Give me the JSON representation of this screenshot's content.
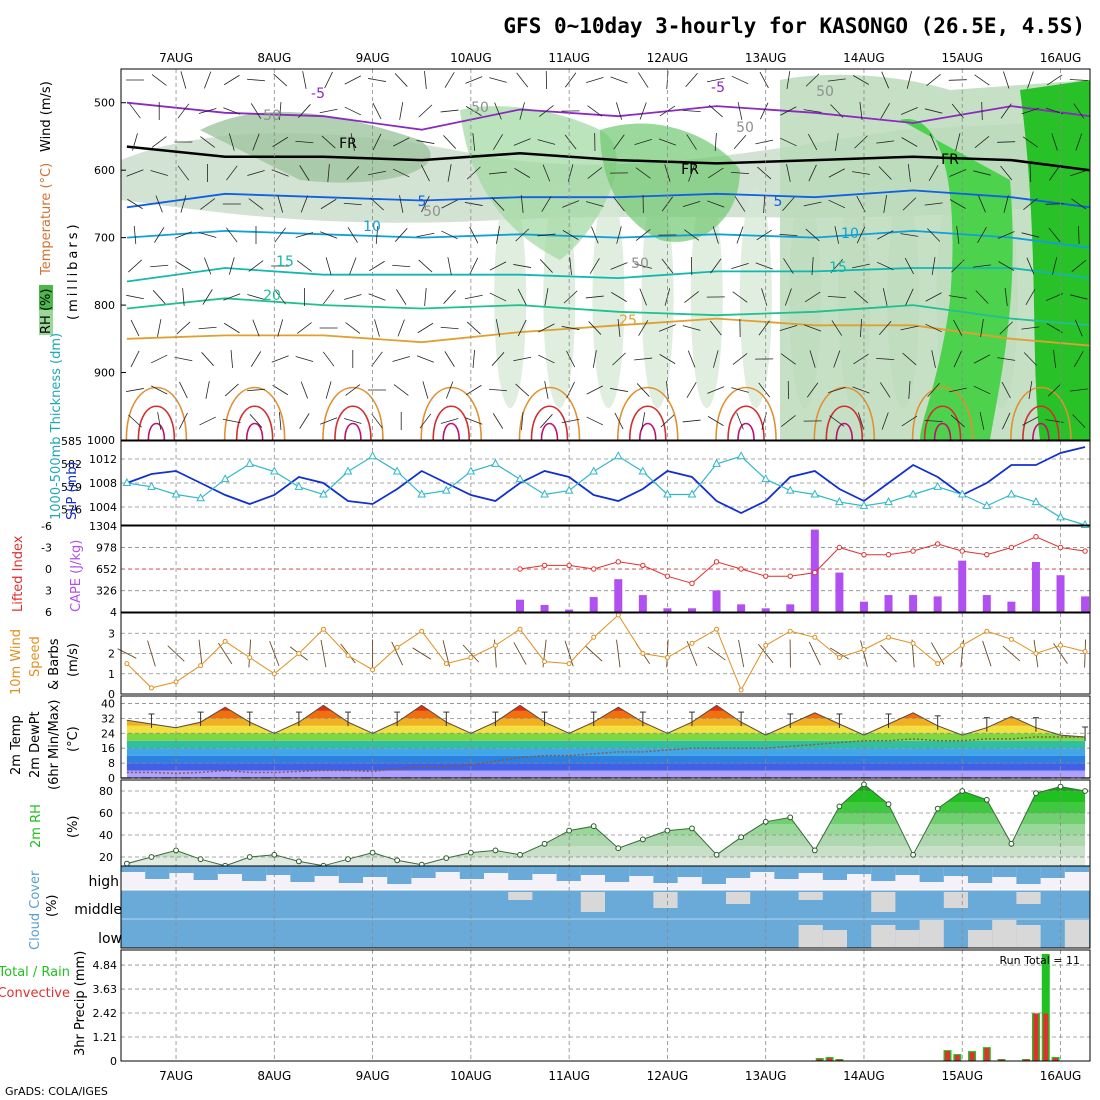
{
  "title": "GFS 0~10day 3-hourly for KASONGO (26.5E, 4.5S)",
  "footer": "GrADS: COLA/IGES",
  "dates": [
    "7AUG",
    "8AUG",
    "9AUG",
    "10AUG",
    "11AUG",
    "12AUG",
    "13AUG",
    "14AUG",
    "15AUG",
    "16AUG"
  ],
  "colors": {
    "red": "#e03030",
    "green": "#20c020",
    "blue": "#1030d0",
    "cyan": "#30b8c8",
    "purple": "#b050f0",
    "orange": "#e09020",
    "cloud": "#6aaad8",
    "gray": "#d8d8d8"
  },
  "chart_data": [
    {
      "type": "heatmap",
      "panel": "upper-air",
      "ylabel_parts": [
        "RH (%)",
        "Temperature (°C)",
        "Wind (m/s)"
      ],
      "y_unit_label": "(millibars)",
      "ylim": [
        1000,
        450
      ],
      "yticks": [
        500,
        600,
        700,
        800,
        900,
        1000
      ],
      "contour_labels": [
        "-5",
        "-5",
        "FR",
        "FR",
        "FR",
        "5",
        "5",
        "10",
        "10",
        "15",
        "15",
        "20",
        "25",
        "50",
        "50",
        "50",
        "50",
        "50",
        "50"
      ],
      "isotherms": [
        {
          "name": "-5",
          "x": [
            6.5,
            7.5,
            8.5,
            9.5,
            10.5,
            11.5,
            12.5,
            13.5,
            14.5,
            15.5,
            16.3
          ],
          "y": [
            500,
            515,
            520,
            540,
            510,
            520,
            505,
            515,
            530,
            505,
            520
          ]
        },
        {
          "name": "FR",
          "x": [
            6.5,
            7.5,
            8.5,
            9.5,
            10.5,
            11.5,
            12.5,
            13.5,
            14.5,
            15.5,
            16.3
          ],
          "y": [
            565,
            580,
            580,
            585,
            575,
            585,
            590,
            585,
            580,
            585,
            600
          ]
        },
        {
          "name": "5",
          "x": [
            6.5,
            7.5,
            8.5,
            9.5,
            10.5,
            11.5,
            12.5,
            13.5,
            14.5,
            15.5,
            16.3
          ],
          "y": [
            655,
            635,
            640,
            645,
            640,
            640,
            635,
            640,
            630,
            640,
            655
          ]
        },
        {
          "name": "10",
          "x": [
            6.5,
            7.5,
            8.5,
            9.5,
            10.5,
            11.5,
            12.5,
            13.5,
            14.5,
            15.5,
            16.3
          ],
          "y": [
            700,
            690,
            695,
            700,
            695,
            700,
            695,
            700,
            690,
            700,
            715
          ]
        },
        {
          "name": "15",
          "x": [
            6.5,
            7.5,
            8.5,
            9.5,
            10.5,
            11.5,
            12.5,
            13.5,
            14.5,
            15.5,
            16.3
          ],
          "y": [
            765,
            745,
            755,
            755,
            755,
            760,
            750,
            750,
            745,
            745,
            760
          ]
        },
        {
          "name": "20",
          "x": [
            6.5,
            7.5,
            8.5,
            9.5,
            10.5,
            11.5,
            12.5,
            13.5,
            14.5,
            15.5,
            16.3
          ],
          "y": [
            805,
            790,
            800,
            805,
            800,
            810,
            815,
            810,
            800,
            820,
            830
          ]
        },
        {
          "name": "25",
          "x": [
            6.5,
            7.5,
            8.5,
            9.5,
            10.5,
            11.5,
            12.5,
            13.5,
            14.5,
            15.5,
            16.3
          ],
          "y": [
            850,
            845,
            845,
            855,
            840,
            830,
            820,
            830,
            830,
            850,
            860
          ]
        }
      ]
    },
    {
      "type": "line",
      "panel": "slp-thickness",
      "ylabels": [
        "1000-500mb Thickness (dm)",
        "SLP (mb)"
      ],
      "yticks_left": [
        576,
        579,
        582,
        585
      ],
      "yticks_right": [
        1004,
        1008,
        1012
      ],
      "ylim_left": [
        574,
        585
      ],
      "ylim_right": [
        1001,
        1015
      ],
      "x": [
        6.5,
        6.75,
        7.0,
        7.25,
        7.5,
        7.75,
        8.0,
        8.25,
        8.5,
        8.75,
        9.0,
        9.25,
        9.5,
        9.75,
        10.0,
        10.25,
        10.5,
        10.75,
        11.0,
        11.25,
        11.5,
        11.75,
        12.0,
        12.25,
        12.5,
        12.75,
        13.0,
        13.25,
        13.5,
        13.75,
        14.0,
        14.25,
        14.5,
        14.75,
        15.0,
        15.25,
        15.5,
        15.75,
        16.0,
        16.25
      ],
      "series": [
        {
          "name": "SLP (mb)",
          "values": [
            1008,
            1009.5,
            1010,
            1008,
            1006,
            1004.5,
            1006,
            1009,
            1008,
            1005,
            1004.5,
            1007,
            1010,
            1008,
            1006,
            1005,
            1008,
            1010,
            1009,
            1006,
            1005,
            1007,
            1010,
            1009,
            1005,
            1003,
            1005,
            1009,
            1010,
            1007,
            1005,
            1008,
            1011,
            1009,
            1006,
            1008,
            1011,
            1011,
            1013,
            1014
          ]
        },
        {
          "name": "1000-500mb Thickness (dm)",
          "values": [
            579.5,
            579,
            578,
            577.5,
            580,
            582,
            581,
            579,
            578,
            581,
            583,
            581,
            578,
            578.5,
            581,
            582,
            580,
            578,
            578.5,
            581,
            583,
            581,
            578,
            578,
            582,
            583,
            580,
            578.5,
            578,
            577,
            576.5,
            577,
            578,
            579,
            578,
            576.5,
            578,
            577,
            575,
            574
          ]
        }
      ]
    },
    {
      "type": "bar",
      "panel": "cape-lifted-index",
      "ylabels": [
        "Lifted Index",
        "CAPE (J/kg)"
      ],
      "yticks_left": [
        6,
        3,
        0,
        -3,
        -6
      ],
      "yticks_right": [
        4,
        326,
        652,
        978,
        1304
      ],
      "ylim_right": [
        4,
        1304
      ],
      "x": [
        10.5,
        10.75,
        11.0,
        11.25,
        11.5,
        11.75,
        12.0,
        12.25,
        12.5,
        12.75,
        13.0,
        13.25,
        13.5,
        13.75,
        14.0,
        14.25,
        14.5,
        14.75,
        15.0,
        15.25,
        15.5,
        15.75,
        16.0,
        16.25
      ],
      "series": [
        {
          "name": "CAPE (J/kg)",
          "values": [
            190,
            110,
            40,
            230,
            500,
            260,
            60,
            60,
            330,
            120,
            60,
            120,
            1250,
            600,
            160,
            260,
            260,
            240,
            780,
            260,
            160,
            760,
            560,
            240
          ]
        },
        {
          "name": "Lifted Index",
          "values": [
            0,
            -0.5,
            -0.5,
            0,
            -1,
            -0.5,
            1,
            2,
            -1,
            0,
            1,
            1,
            0.5,
            -3,
            -2,
            -2,
            -2.5,
            -3.5,
            -2.5,
            -2,
            -3,
            -4.5,
            -3,
            -2.5
          ]
        }
      ]
    },
    {
      "type": "line",
      "panel": "10m-wind",
      "ylabels": [
        "10m Wind",
        "Speed",
        "& Barbs",
        "(m/s)"
      ],
      "yticks": [
        0,
        1,
        2,
        3
      ],
      "ylim": [
        0,
        4
      ],
      "x": [
        6.5,
        6.75,
        7.0,
        7.25,
        7.5,
        7.75,
        8.0,
        8.25,
        8.5,
        8.75,
        9.0,
        9.25,
        9.5,
        9.75,
        10.0,
        10.25,
        10.5,
        10.75,
        11.0,
        11.25,
        11.5,
        11.75,
        12.0,
        12.25,
        12.5,
        12.75,
        13.0,
        13.25,
        13.5,
        13.75,
        14.0,
        14.25,
        14.5,
        14.75,
        15.0,
        15.25,
        15.5,
        15.75,
        16.0,
        16.25
      ],
      "series": [
        {
          "name": "Speed",
          "values": [
            1.5,
            0.3,
            0.6,
            1.4,
            2.6,
            1.8,
            1.0,
            2.0,
            3.2,
            1.9,
            1.2,
            2.3,
            3.1,
            1.5,
            1.8,
            2.4,
            3.2,
            1.6,
            1.5,
            2.8,
            3.9,
            2.0,
            1.8,
            2.5,
            3.2,
            0.2,
            2.4,
            3.1,
            2.8,
            1.8,
            2.2,
            2.8,
            2.5,
            1.5,
            2.4,
            3.1,
            2.7,
            2.0,
            2.4,
            2.1
          ]
        }
      ]
    },
    {
      "type": "area",
      "panel": "2m-temp",
      "ylabels": [
        "2m Temp",
        "2m DewPt",
        "(6hr Min/Max)",
        "(°C)"
      ],
      "yticks": [
        0,
        8,
        16,
        24,
        32,
        40
      ],
      "ylim": [
        0,
        44
      ],
      "x": [
        6.5,
        6.75,
        7.0,
        7.25,
        7.5,
        7.75,
        8.0,
        8.25,
        8.5,
        8.75,
        9.0,
        9.25,
        9.5,
        9.75,
        10.0,
        10.25,
        10.5,
        10.75,
        11.0,
        11.25,
        11.5,
        11.75,
        12.0,
        12.25,
        12.5,
        12.75,
        13.0,
        13.25,
        13.5,
        13.75,
        14.0,
        14.25,
        14.5,
        14.75,
        15.0,
        15.25,
        15.5,
        15.75,
        16.0,
        16.25
      ],
      "series": [
        {
          "name": "2m Temp",
          "values": [
            31,
            29,
            27,
            30,
            38,
            30,
            24,
            30,
            39,
            30,
            24,
            30,
            39,
            30,
            24,
            30,
            39,
            30,
            24,
            30,
            38,
            30,
            24,
            30,
            39,
            30,
            23,
            29,
            35,
            29,
            23,
            29,
            35,
            28,
            23,
            27,
            33,
            27,
            23,
            22
          ]
        },
        {
          "name": "2m DewPt",
          "values": [
            3,
            3,
            2.5,
            3,
            4,
            3,
            3,
            3.5,
            4,
            4,
            3.5,
            5,
            6,
            6,
            7,
            9,
            11,
            12,
            12,
            13,
            14,
            14,
            15,
            16,
            16,
            16,
            16,
            17,
            18,
            19,
            20,
            20,
            21,
            20,
            20,
            21,
            21,
            22,
            22,
            22
          ]
        }
      ]
    },
    {
      "type": "area",
      "panel": "2m-rh",
      "ylabels": [
        "2m RH",
        "(%)"
      ],
      "yticks": [
        20,
        40,
        60,
        80
      ],
      "ylim": [
        10,
        90
      ],
      "x": [
        6.5,
        6.75,
        7.0,
        7.25,
        7.5,
        7.75,
        8.0,
        8.25,
        8.5,
        8.75,
        9.0,
        9.25,
        9.5,
        9.75,
        10.0,
        10.25,
        10.5,
        10.75,
        11.0,
        11.25,
        11.5,
        11.75,
        12.0,
        12.25,
        12.5,
        12.75,
        13.0,
        13.25,
        13.5,
        13.75,
        14.0,
        14.25,
        14.5,
        14.75,
        15.0,
        15.25,
        15.5,
        15.75,
        16.0,
        16.25
      ],
      "series": [
        {
          "name": "2m RH",
          "values": [
            14,
            20,
            26,
            18,
            12,
            20,
            22,
            16,
            12,
            18,
            24,
            17,
            13,
            19,
            24,
            26,
            22,
            32,
            44,
            48,
            28,
            36,
            44,
            46,
            22,
            38,
            52,
            56,
            26,
            66,
            86,
            68,
            22,
            64,
            80,
            72,
            32,
            78,
            84,
            80
          ]
        }
      ]
    },
    {
      "type": "heatmap",
      "panel": "cloud-cover",
      "ylabels": [
        "Cloud Cover",
        "(%)"
      ],
      "rows": [
        "high",
        "middle",
        "low"
      ]
    },
    {
      "type": "bar",
      "panel": "precip",
      "ylabels": [
        "Total / Rain",
        "Convective",
        "3hr Precip (mm)"
      ],
      "annotation": "Run Total = 11",
      "yticks": [
        0,
        1.21,
        2.42,
        3.63,
        4.84
      ],
      "ylim": [
        0,
        5.6
      ],
      "x": [
        13.55,
        13.65,
        13.75,
        14.85,
        14.95,
        15.1,
        15.25,
        15.4,
        15.65,
        15.75,
        15.85,
        15.95
      ],
      "series": [
        {
          "name": "Total / Rain",
          "values": [
            0.15,
            0.2,
            0.1,
            0.55,
            0.35,
            0.5,
            0.7,
            0.1,
            0.1,
            2.4,
            5.4,
            0.2
          ]
        },
        {
          "name": "Convective",
          "values": [
            0.1,
            0.15,
            0.08,
            0.5,
            0.3,
            0.45,
            0.65,
            0.08,
            0.08,
            2.4,
            2.4,
            0.15
          ]
        }
      ]
    }
  ]
}
